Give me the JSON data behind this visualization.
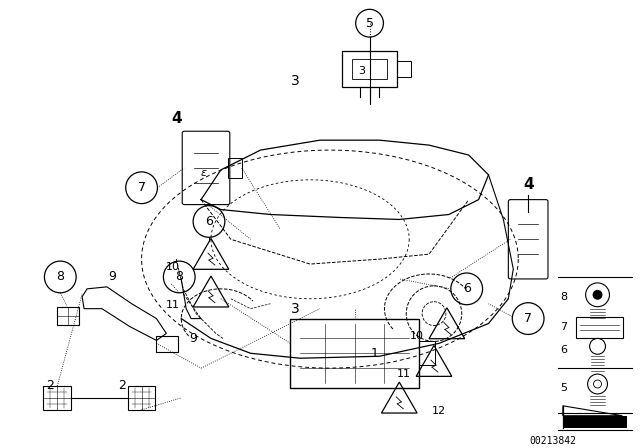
{
  "background_color": "#ffffff",
  "image_code": "00213842",
  "fig_width": 6.4,
  "fig_height": 4.48,
  "dpi": 100
}
